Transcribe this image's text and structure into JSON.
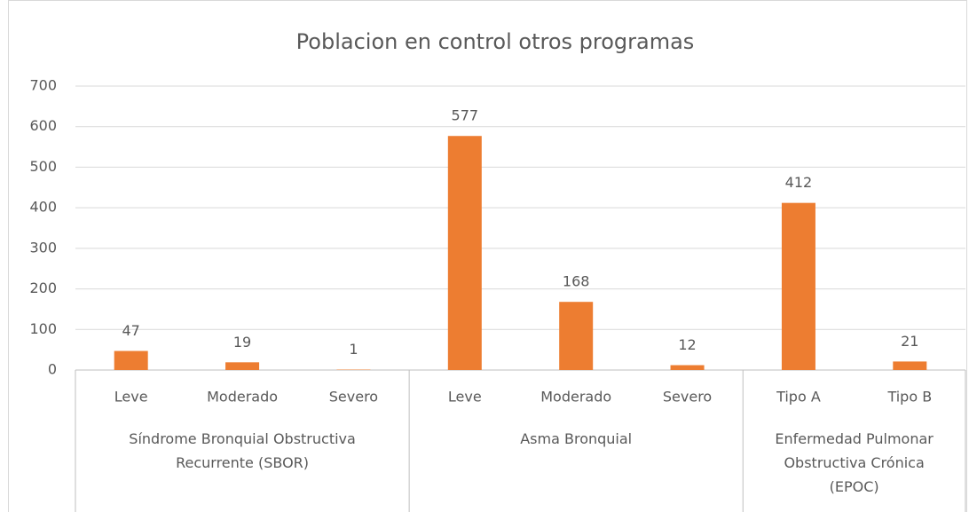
{
  "chart_data": {
    "type": "bar",
    "title": "Poblacion en control otros programas",
    "groups": [
      {
        "name": "Síndrome Bronquial Obstructiva Recurrente (SBOR)",
        "categories": [
          "Leve",
          "Moderado",
          "Severo"
        ]
      },
      {
        "name": "Asma Bronquial",
        "categories": [
          "Leve",
          "Moderado",
          "Severo"
        ]
      },
      {
        "name": "Enfermedad Pulmonar Obstructiva Crónica (EPOC)",
        "categories": [
          "Tipo A",
          "Tipo B"
        ]
      }
    ],
    "values": [
      47,
      19,
      1,
      577,
      168,
      12,
      412,
      21
    ],
    "color": "#ed7d31",
    "ylim": [
      0,
      700
    ],
    "yticks": [
      0,
      100,
      200,
      300,
      400,
      500,
      600,
      700
    ],
    "grid": true
  }
}
